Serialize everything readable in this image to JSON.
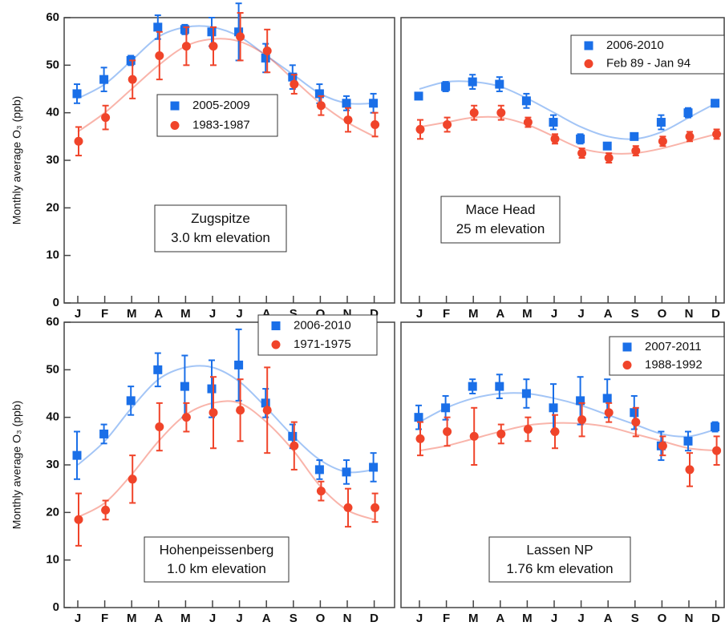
{
  "chart_data": [
    {
      "type": "errorbar",
      "categories": [
        "J",
        "F",
        "M",
        "A",
        "M",
        "J",
        "J",
        "A",
        "S",
        "O",
        "N",
        "D"
      ],
      "ylim": [
        0,
        60
      ],
      "yticks": [
        0,
        10,
        20,
        30,
        40,
        50,
        60
      ],
      "y_label": "Monthly average O₃ (ppb)",
      "annotation": [
        "Zugspitze",
        "3.0 km elevation"
      ],
      "series": [
        {
          "name": "2005-2009",
          "color": "#1a6fe8",
          "marker": "square",
          "values": [
            44,
            47,
            51,
            58,
            57.5,
            57,
            57,
            51.5,
            47.5,
            44,
            42,
            42
          ],
          "errors": [
            2,
            2.5,
            1,
            2.5,
            1,
            3,
            6,
            3,
            2.5,
            2,
            1.5,
            2
          ],
          "fit": [
            43,
            46,
            51,
            56,
            58,
            58,
            56,
            52,
            48,
            44,
            42,
            42
          ]
        },
        {
          "name": "1983-1987",
          "color": "#f0442a",
          "marker": "circle",
          "values": [
            34,
            39,
            47,
            52,
            54,
            54,
            56,
            53,
            46,
            41.5,
            38.5,
            37.5
          ],
          "errors": [
            3,
            2.5,
            4,
            5,
            4,
            4,
            5,
            4.5,
            2,
            2,
            2.5,
            2.5
          ],
          "fit": [
            36,
            40,
            45,
            50,
            54,
            55.5,
            55,
            52,
            47,
            42,
            38,
            35
          ]
        }
      ]
    },
    {
      "type": "errorbar",
      "categories": [
        "J",
        "F",
        "M",
        "A",
        "M",
        "J",
        "J",
        "A",
        "S",
        "O",
        "N",
        "D"
      ],
      "ylim": [
        0,
        60
      ],
      "annotation": [
        "Mace Head",
        "25 m elevation"
      ],
      "series": [
        {
          "name": "2006-2010",
          "color": "#1a6fe8",
          "marker": "square",
          "values": [
            43.5,
            45.5,
            46.5,
            46,
            42.5,
            38,
            34.5,
            33,
            35,
            38,
            40,
            42
          ],
          "errors": [
            0.5,
            1,
            1.5,
            1.5,
            1.5,
            1.5,
            1,
            0.5,
            0.5,
            1.5,
            1,
            0.5
          ],
          "fit": [
            45,
            46.5,
            46.5,
            45.5,
            43,
            40,
            37,
            35,
            34.5,
            36,
            39,
            42
          ]
        },
        {
          "name": "Feb 89 - Jan 94",
          "color": "#f0442a",
          "marker": "circle",
          "values": [
            36.5,
            37.5,
            40,
            40,
            38,
            34.5,
            31.5,
            30.5,
            32,
            34,
            35,
            35.5
          ],
          "errors": [
            2,
            1.5,
            1.5,
            1.5,
            1,
            1,
            1,
            1,
            1,
            1,
            1,
            1
          ],
          "fit": [
            37,
            38,
            39,
            39,
            37.5,
            35,
            32.5,
            31.5,
            31.5,
            32.5,
            34,
            35.5
          ]
        }
      ]
    },
    {
      "type": "errorbar",
      "categories": [
        "J",
        "F",
        "M",
        "A",
        "M",
        "J",
        "J",
        "A",
        "S",
        "O",
        "N",
        "D"
      ],
      "ylim": [
        0,
        60
      ],
      "yticks": [
        0,
        10,
        20,
        30,
        40,
        50,
        60
      ],
      "y_label": "Monthly average O₃ (ppb)",
      "annotation": [
        "Hohenpeissenberg",
        "1.0 km elevation"
      ],
      "series": [
        {
          "name": "2006-2010",
          "color": "#1a6fe8",
          "marker": "square",
          "values": [
            32,
            36.5,
            43.5,
            50,
            46.5,
            46,
            51,
            43,
            36,
            29,
            28.5,
            29.5
          ],
          "errors": [
            5,
            2,
            3,
            3.5,
            6.5,
            6,
            7.5,
            3,
            2.5,
            2,
            2.5,
            3
          ],
          "fit": [
            30,
            35,
            42,
            48,
            50.5,
            50.5,
            47.5,
            42,
            36,
            31,
            28.5,
            29
          ]
        },
        {
          "name": "1971-1975",
          "color": "#f0442a",
          "marker": "circle",
          "values": [
            18.5,
            20.5,
            27,
            38,
            40,
            41,
            41.5,
            41.5,
            34,
            24.5,
            21,
            21
          ],
          "errors": [
            5.5,
            2,
            5,
            5,
            3,
            7.5,
            6.5,
            9,
            5,
            2,
            4,
            3
          ],
          "fit": [
            19,
            22,
            28,
            35,
            40.5,
            43,
            43,
            39,
            33,
            25.5,
            20.5,
            18.5
          ]
        }
      ]
    },
    {
      "type": "errorbar",
      "categories": [
        "J",
        "F",
        "M",
        "A",
        "M",
        "J",
        "J",
        "A",
        "S",
        "O",
        "N",
        "D"
      ],
      "ylim": [
        0,
        60
      ],
      "annotation": [
        "Lassen NP",
        "1.76 km elevation"
      ],
      "series": [
        {
          "name": "2007-2011",
          "color": "#1a6fe8",
          "marker": "square",
          "values": [
            40,
            42,
            46.5,
            46.5,
            45,
            42,
            43.5,
            44,
            41,
            34,
            35,
            38
          ],
          "errors": [
            2.5,
            2.5,
            1.5,
            2.5,
            3,
            5,
            5,
            4,
            3.5,
            3,
            2,
            1
          ],
          "fit": [
            39,
            42,
            44,
            45,
            45,
            44,
            42.5,
            40.5,
            38.5,
            36.5,
            36,
            37.5
          ]
        },
        {
          "name": "1988-1992",
          "color": "#f0442a",
          "marker": "circle",
          "values": [
            35.5,
            37,
            36,
            36.5,
            37.5,
            37,
            39.5,
            41,
            39,
            34,
            29,
            33
          ],
          "errors": [
            3.5,
            3,
            6,
            2,
            2.5,
            3.5,
            3.5,
            2,
            3,
            2,
            3.5,
            3
          ],
          "fit": [
            33,
            34,
            35.5,
            37,
            38.3,
            38.8,
            38.7,
            38,
            36.5,
            35,
            33.5,
            33
          ]
        }
      ]
    }
  ]
}
